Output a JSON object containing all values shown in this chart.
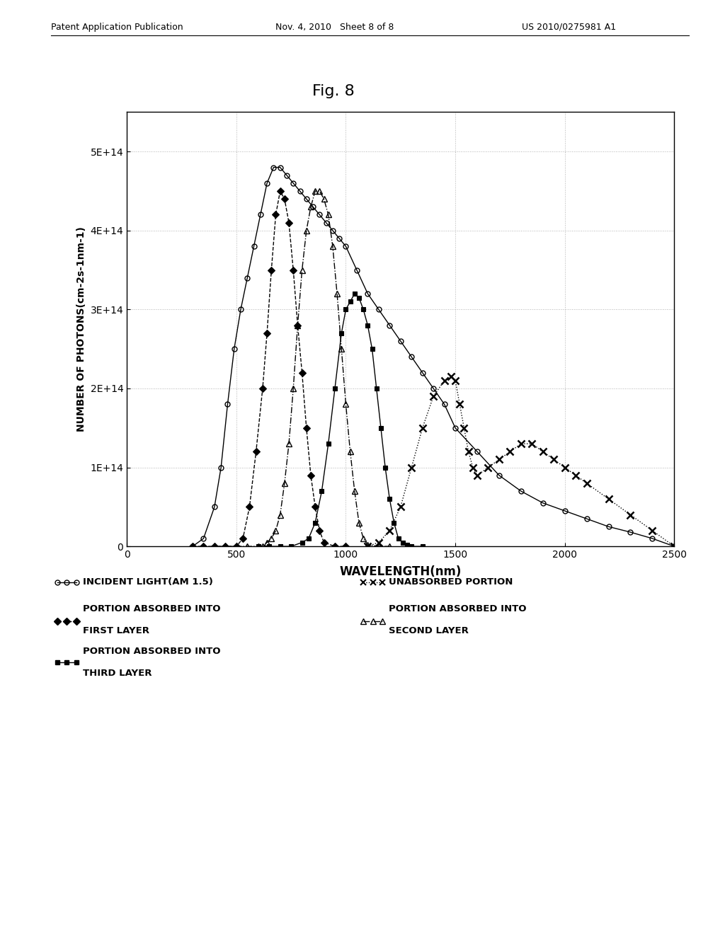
{
  "title": "Fig. 8",
  "xlabel": "WAVELENGTH(nm)",
  "ylabel": "NUMBER OF PHOTONS(cm-2s-1nm-1)",
  "xlim": [
    0,
    2500
  ],
  "ylim": [
    0,
    550000000000000.0
  ],
  "yticks": [
    0,
    100000000000000.0,
    200000000000000.0,
    300000000000000.0,
    400000000000000.0,
    500000000000000.0
  ],
  "ytick_labels": [
    "0",
    "1E+14",
    "2E+14",
    "3E+14",
    "4E+14",
    "5E+14"
  ],
  "xticks": [
    0,
    500,
    1000,
    1500,
    2000,
    2500
  ],
  "background": "#ffffff",
  "header_left": "Patent Application Publication",
  "header_center": "Nov. 4, 2010   Sheet 8 of 8",
  "header_right": "US 2010/0275981 A1",
  "scale": 100000000000000.0
}
